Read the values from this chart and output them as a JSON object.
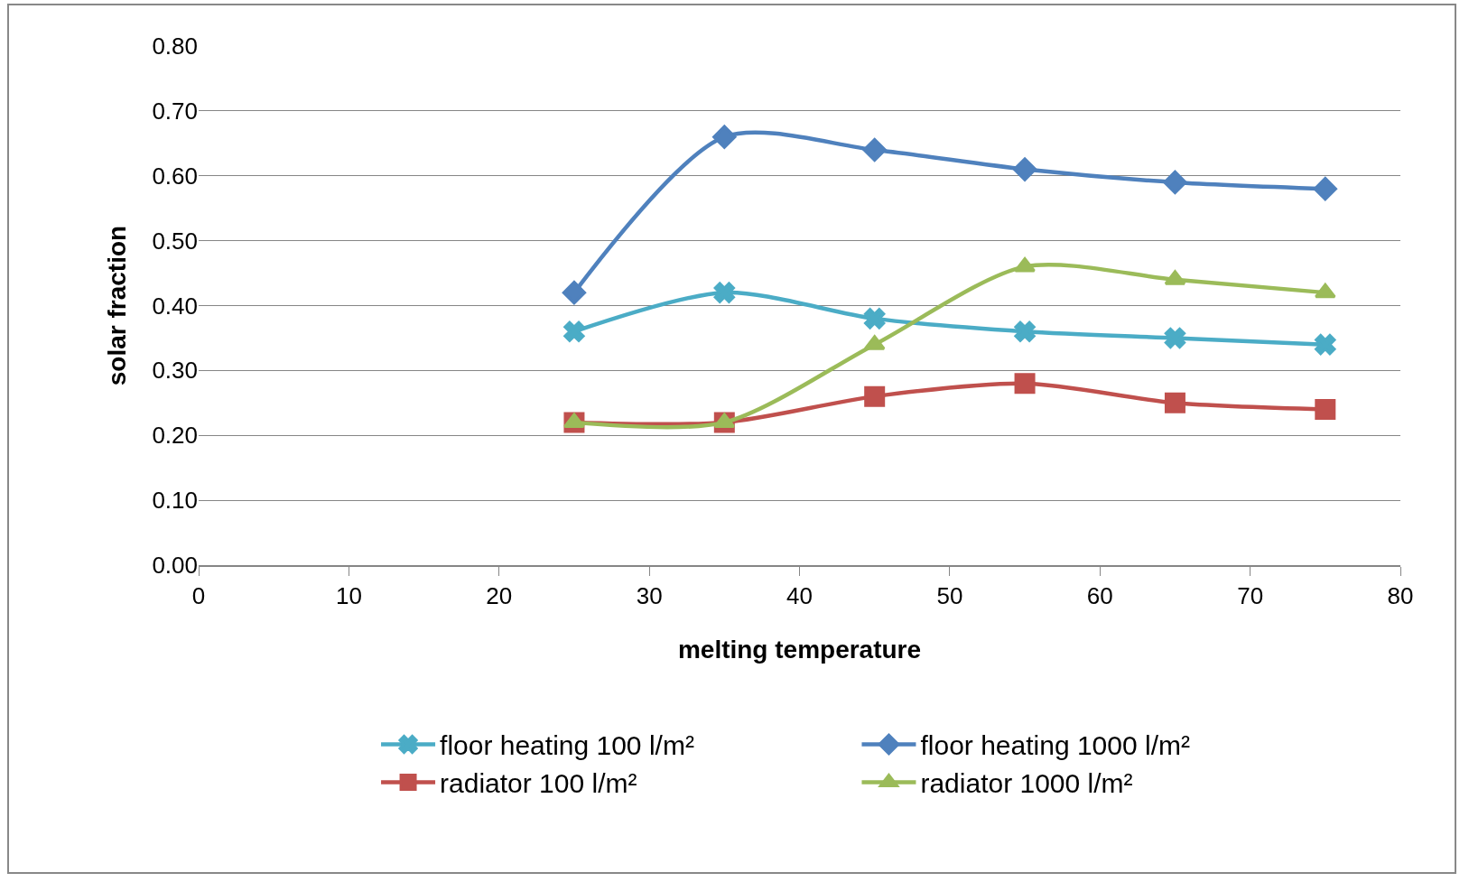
{
  "chart_data": {
    "type": "line",
    "xlabel": "melting temperature",
    "ylabel": "solar fraction",
    "x": [
      25,
      35,
      45,
      55,
      65,
      75
    ],
    "series": [
      {
        "name": "floor heating 100 l/m²",
        "color": "#4bacc6",
        "marker": "cross",
        "values": [
          0.36,
          0.42,
          0.38,
          0.36,
          0.35,
          0.34
        ]
      },
      {
        "name": "floor heating 1000 l/m²",
        "color": "#4f81bd",
        "marker": "diamond",
        "values": [
          0.42,
          0.66,
          0.64,
          0.61,
          0.59,
          0.58
        ]
      },
      {
        "name": "radiator 100 l/m²",
        "color": "#c0504d",
        "marker": "square",
        "values": [
          0.22,
          0.22,
          0.26,
          0.28,
          0.25,
          0.24
        ]
      },
      {
        "name": "radiator 1000 l/m²",
        "color": "#9bbb59",
        "marker": "triangle",
        "values": [
          0.22,
          0.22,
          0.34,
          0.46,
          0.44,
          0.42
        ]
      }
    ],
    "xlim": [
      0,
      80
    ],
    "xticks": [
      0,
      10,
      20,
      30,
      40,
      50,
      60,
      70,
      80
    ],
    "ylim": [
      0,
      0.8
    ],
    "yticks": [
      {
        "value": 0,
        "label": "0.00"
      },
      {
        "value": 0.1,
        "label": "0.10"
      },
      {
        "value": 0.2,
        "label": "0.20"
      },
      {
        "value": 0.3,
        "label": "0.30"
      },
      {
        "value": 0.4,
        "label": "0.40"
      },
      {
        "value": 0.5,
        "label": "0.50"
      },
      {
        "value": 0.6,
        "label": "0.60"
      },
      {
        "value": 0.7,
        "label": "0.70"
      },
      {
        "value": 0.8,
        "label": "0.80"
      }
    ],
    "grid": "y",
    "legend": "bottom",
    "line_style": "solid"
  }
}
